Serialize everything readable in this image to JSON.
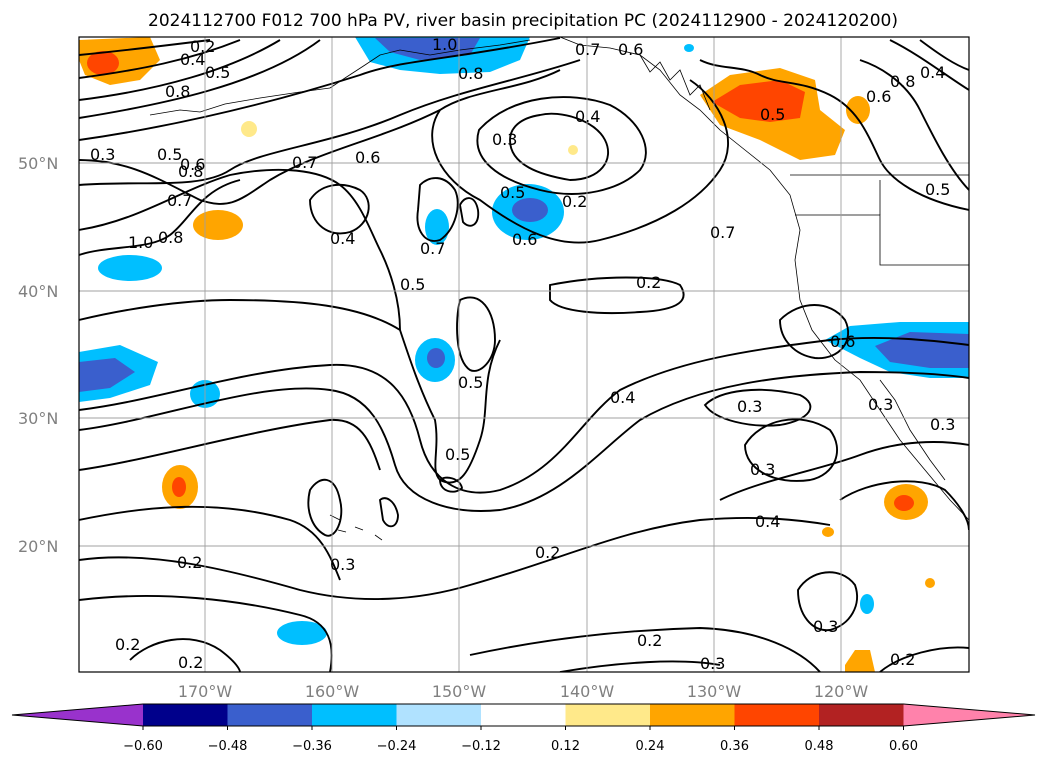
{
  "title": "2024112700 F012 700 hPa PV, river basin precipitation PC (2024112900 - 2024120200)",
  "map": {
    "lat_labels": [
      "50°N",
      "40°N",
      "30°N",
      "20°N"
    ],
    "lon_labels": [
      "170°W",
      "160°W",
      "150°W",
      "140°W",
      "130°W",
      "120°W"
    ],
    "contour_labels": [
      "0.2",
      "0.4",
      "0.5",
      "1.0",
      "0.8",
      "0.7",
      "0.6",
      "0.8",
      "0.6",
      "0.4",
      "0.3",
      "0.2",
      "0.5",
      "0.8",
      "0.6",
      "0.8",
      "0.3",
      "0.5",
      "0.6",
      "0.7",
      "0.4",
      "0.5",
      "0.5",
      "0.7",
      "0.4",
      "0.3",
      "0.3",
      "0.4",
      "0.5",
      "0.2",
      "0.2",
      "0.3",
      "0.2",
      "0.2",
      "0.2",
      "0.2",
      "0.3",
      "0.2",
      "0.3",
      "0.8",
      "1.0",
      "0.7",
      "0.4",
      "0.5",
      "0.6",
      "0.3",
      "0.3",
      "0.6",
      "0.7",
      "0.5"
    ]
  },
  "colorbar": {
    "colors": [
      "#9932cc",
      "#00008b",
      "#3a5fcd",
      "#00bfff",
      "#b0e2ff",
      "#ffffff",
      "#ffe98a",
      "#ffa500",
      "#ff4500",
      "#b22222",
      "#ff82ab"
    ],
    "ticks": [
      "−0.60",
      "−0.48",
      "−0.36",
      "−0.24",
      "−0.12",
      "0.12",
      "0.24",
      "0.36",
      "0.48",
      "0.60"
    ]
  }
}
